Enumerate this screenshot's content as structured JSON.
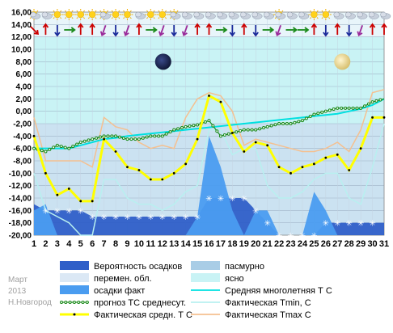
{
  "side_text": {
    "month": "Март",
    "year": "2013",
    "city": "Н.Новгород"
  },
  "chart_data": {
    "type": "line",
    "x": [
      1,
      2,
      3,
      4,
      5,
      6,
      7,
      8,
      9,
      10,
      11,
      12,
      13,
      14,
      15,
      16,
      17,
      18,
      19,
      20,
      21,
      22,
      23,
      24,
      25,
      26,
      27,
      28,
      29,
      30,
      31
    ],
    "ylim": [
      -20,
      16
    ],
    "yticks": [
      "16,00",
      "14,00",
      "12,00",
      "10,00",
      "8,00",
      "6,00",
      "4,00",
      "2,00",
      "0,00",
      "-2,00",
      "-4,00",
      "-6,00",
      "-8,00",
      "-10,00",
      "-12,00",
      "-14,00",
      "-16,00",
      "-18,00",
      "-20,00"
    ],
    "xticks": [
      "1",
      "2",
      "3",
      "4",
      "5",
      "6",
      "7",
      "8",
      "9",
      "10",
      "11",
      "12",
      "13",
      "14",
      "15",
      "16",
      "17",
      "18",
      "19",
      "20",
      "21",
      "22",
      "23",
      "24",
      "25",
      "26",
      "27",
      "28",
      "29",
      "30",
      "31"
    ],
    "grid": true,
    "colors": {
      "plot_bg": "#e8f5fa",
      "clear_band": "#c9f3f5",
      "overcast_band": "#a9cde6",
      "precip_prob": "#2f5fc8",
      "precip_fact": "#4a9cf0",
      "mean_longterm": "#00e0e0",
      "forecast": "#1a8a1a",
      "fact_min": "#b8f0f0",
      "fact_mean": "#ffff00",
      "fact_max": "#f5c090"
    },
    "series": [
      {
        "name": "Вероятность осадков",
        "type": "area",
        "values": [
          -15,
          -16,
          -16,
          -16,
          -16,
          -17,
          -17,
          -17,
          -17,
          -17,
          -17,
          -17,
          -17,
          -17,
          -17,
          -14,
          -14,
          -14,
          -14,
          -16,
          -18,
          -20,
          -20,
          -20,
          -20,
          -18,
          -18,
          -18,
          -18,
          -18,
          -18
        ]
      },
      {
        "name": "осадки факт",
        "type": "area",
        "values": [
          -16,
          -15,
          -20,
          -20,
          -20,
          -20,
          -20,
          -20,
          -20,
          -20,
          -20,
          -20,
          -20,
          -20,
          -17,
          -4,
          -9,
          -16,
          -20,
          -16,
          -16,
          -20,
          -20,
          -20,
          -13,
          -16,
          -20,
          -20,
          -20,
          -20,
          -20
        ]
      },
      {
        "name": "Средняя многолетняя Т С",
        "type": "line",
        "values": [
          -6,
          -6,
          -6,
          -6,
          -5.5,
          -5,
          -4.5,
          -4.3,
          -4,
          -3.8,
          -3.6,
          -3.4,
          -3.2,
          -3,
          -2.8,
          -2.6,
          -2.4,
          -2.2,
          -2,
          -1.8,
          -1.6,
          -1.4,
          -1.2,
          -1,
          -0.8,
          -0.6,
          -0.4,
          0,
          0.4,
          1,
          2
        ]
      },
      {
        "name": "прогноз ТС среднесут.",
        "type": "line",
        "values": [
          -6,
          -6.5,
          -5.5,
          -6,
          -5,
          -4.5,
          -4,
          -4,
          -4.5,
          -4.5,
          -4,
          -4,
          -3,
          -2.5,
          -2.2,
          -1.5,
          -4,
          -3.5,
          -3,
          -3,
          -2.5,
          -2,
          -2,
          -1.5,
          -0.5,
          0,
          0.5,
          0.5,
          0.5,
          1.5,
          2
        ]
      },
      {
        "name": "Фактическая Tmin, С",
        "type": "line",
        "values": [
          -10,
          -16,
          -17,
          -18,
          -20,
          -20,
          -11,
          -11,
          -14,
          -15,
          -15,
          -16,
          -15,
          -13,
          -12,
          -3,
          -3,
          -7,
          -6,
          -6,
          -12,
          -14,
          -14,
          -13,
          -11,
          -10,
          -10,
          -14,
          -15,
          -9,
          -2
        ]
      },
      {
        "name": "Фактическая средн. Т С",
        "type": "line",
        "values": [
          -4,
          -10,
          -13.5,
          -12.5,
          -14.5,
          -14.5,
          -4.5,
          -6.5,
          -9,
          -9.5,
          -11,
          -11,
          -10,
          -8.5,
          -4.5,
          2.5,
          1.5,
          -3.5,
          -6.5,
          -5,
          -5.5,
          -9,
          -10,
          -9,
          -8.5,
          -7.5,
          -7,
          -9.5,
          -6,
          -1,
          -1
        ]
      },
      {
        "name": "Фактическая Tmax C",
        "type": "line",
        "values": [
          -1,
          -8,
          -8,
          -8,
          -8,
          -9,
          -1,
          -2.5,
          -3,
          -5,
          -6,
          -5.5,
          -6,
          -1,
          2,
          3,
          2.5,
          0,
          -5.5,
          -4.5,
          -5,
          -5.5,
          -6,
          -6.5,
          -6.5,
          -6,
          -5,
          -6.5,
          -3,
          3,
          3.5
        ]
      }
    ]
  },
  "legend": [
    {
      "label": "Вероятность осадков",
      "kind": "box",
      "color": "#2f5fc8"
    },
    {
      "label": "пасмурно",
      "kind": "box",
      "color": "#a9cde6"
    },
    {
      "label": "перемен. обл.",
      "kind": "box",
      "color": "#dbe8f5"
    },
    {
      "label": "ясно",
      "kind": "box",
      "color": "#c9f3f5"
    },
    {
      "label": "осадки факт",
      "kind": "box",
      "color": "#4a9cf0"
    },
    {
      "label": "Средняя многолетняя Т С",
      "kind": "line",
      "color": "#00e0e0"
    },
    {
      "label": "прогноз ТС среднесут.",
      "kind": "dots",
      "color": "#1a8a1a"
    },
    {
      "label": "Фактическая Tmin, С",
      "kind": "line",
      "color": "#b8f0f0"
    },
    {
      "label": "Фактическая средн. Т С",
      "kind": "thick",
      "color": "#ffff00"
    },
    {
      "label": "Фактическая Tmax C",
      "kind": "line",
      "color": "#f5c090"
    }
  ],
  "icons": {
    "weather_row": [
      "sun-cloud-icon",
      "cloud-icon",
      "sun-icon",
      "sun-icon",
      "sun-icon",
      "sun-icon",
      "sun-cloud-icon",
      "sun-icon",
      "sun-icon",
      "cloud-icon",
      "sun-icon",
      "sun-icon",
      "sun-cloud-icon",
      "cloud-icon",
      "cloud-icon",
      "cloud-icon",
      "cloud-icon",
      "cloud-icon",
      "cloud-icon",
      "cloud-icon",
      "cloud-icon",
      "sun-cloud-icon",
      "cloud-icon",
      "cloud-icon",
      "sun-icon",
      "sun-icon",
      "cloud-icon",
      "cloud-icon",
      "cloud-icon",
      "cloud-icon",
      "cloud-icon"
    ],
    "wind_colors": [
      "#cc0000",
      "#cc0000",
      "#1a2a9a",
      "#1a8a1a",
      "#cc0000",
      "#cc0000",
      "#9a2a9a",
      "#1a2a9a",
      "#9a2a9a",
      "#cc0000",
      "#1a8a1a",
      "#9a2a9a",
      "#1a2a9a",
      "#9a2a9a",
      "#cc0000",
      "#cc0000",
      "#1a8a1a",
      "#1a2a9a",
      "#cc0000",
      "#1a2a9a",
      "#1a8a1a",
      "#9a2a9a",
      "#1a8a1a",
      "#1a8a1a",
      "#cc0000",
      "#1a2a9a",
      "#cc0000",
      "#1a2a9a",
      "#9a2a9a",
      "#cc0000",
      "#cc0000"
    ],
    "wind_angles": [
      135,
      0,
      180,
      90,
      0,
      0,
      200,
      180,
      200,
      0,
      90,
      200,
      180,
      200,
      0,
      0,
      90,
      180,
      0,
      180,
      90,
      200,
      90,
      90,
      0,
      180,
      0,
      180,
      200,
      0,
      0
    ],
    "new_moon": "new-moon-icon",
    "full_moon": "full-moon-icon"
  }
}
